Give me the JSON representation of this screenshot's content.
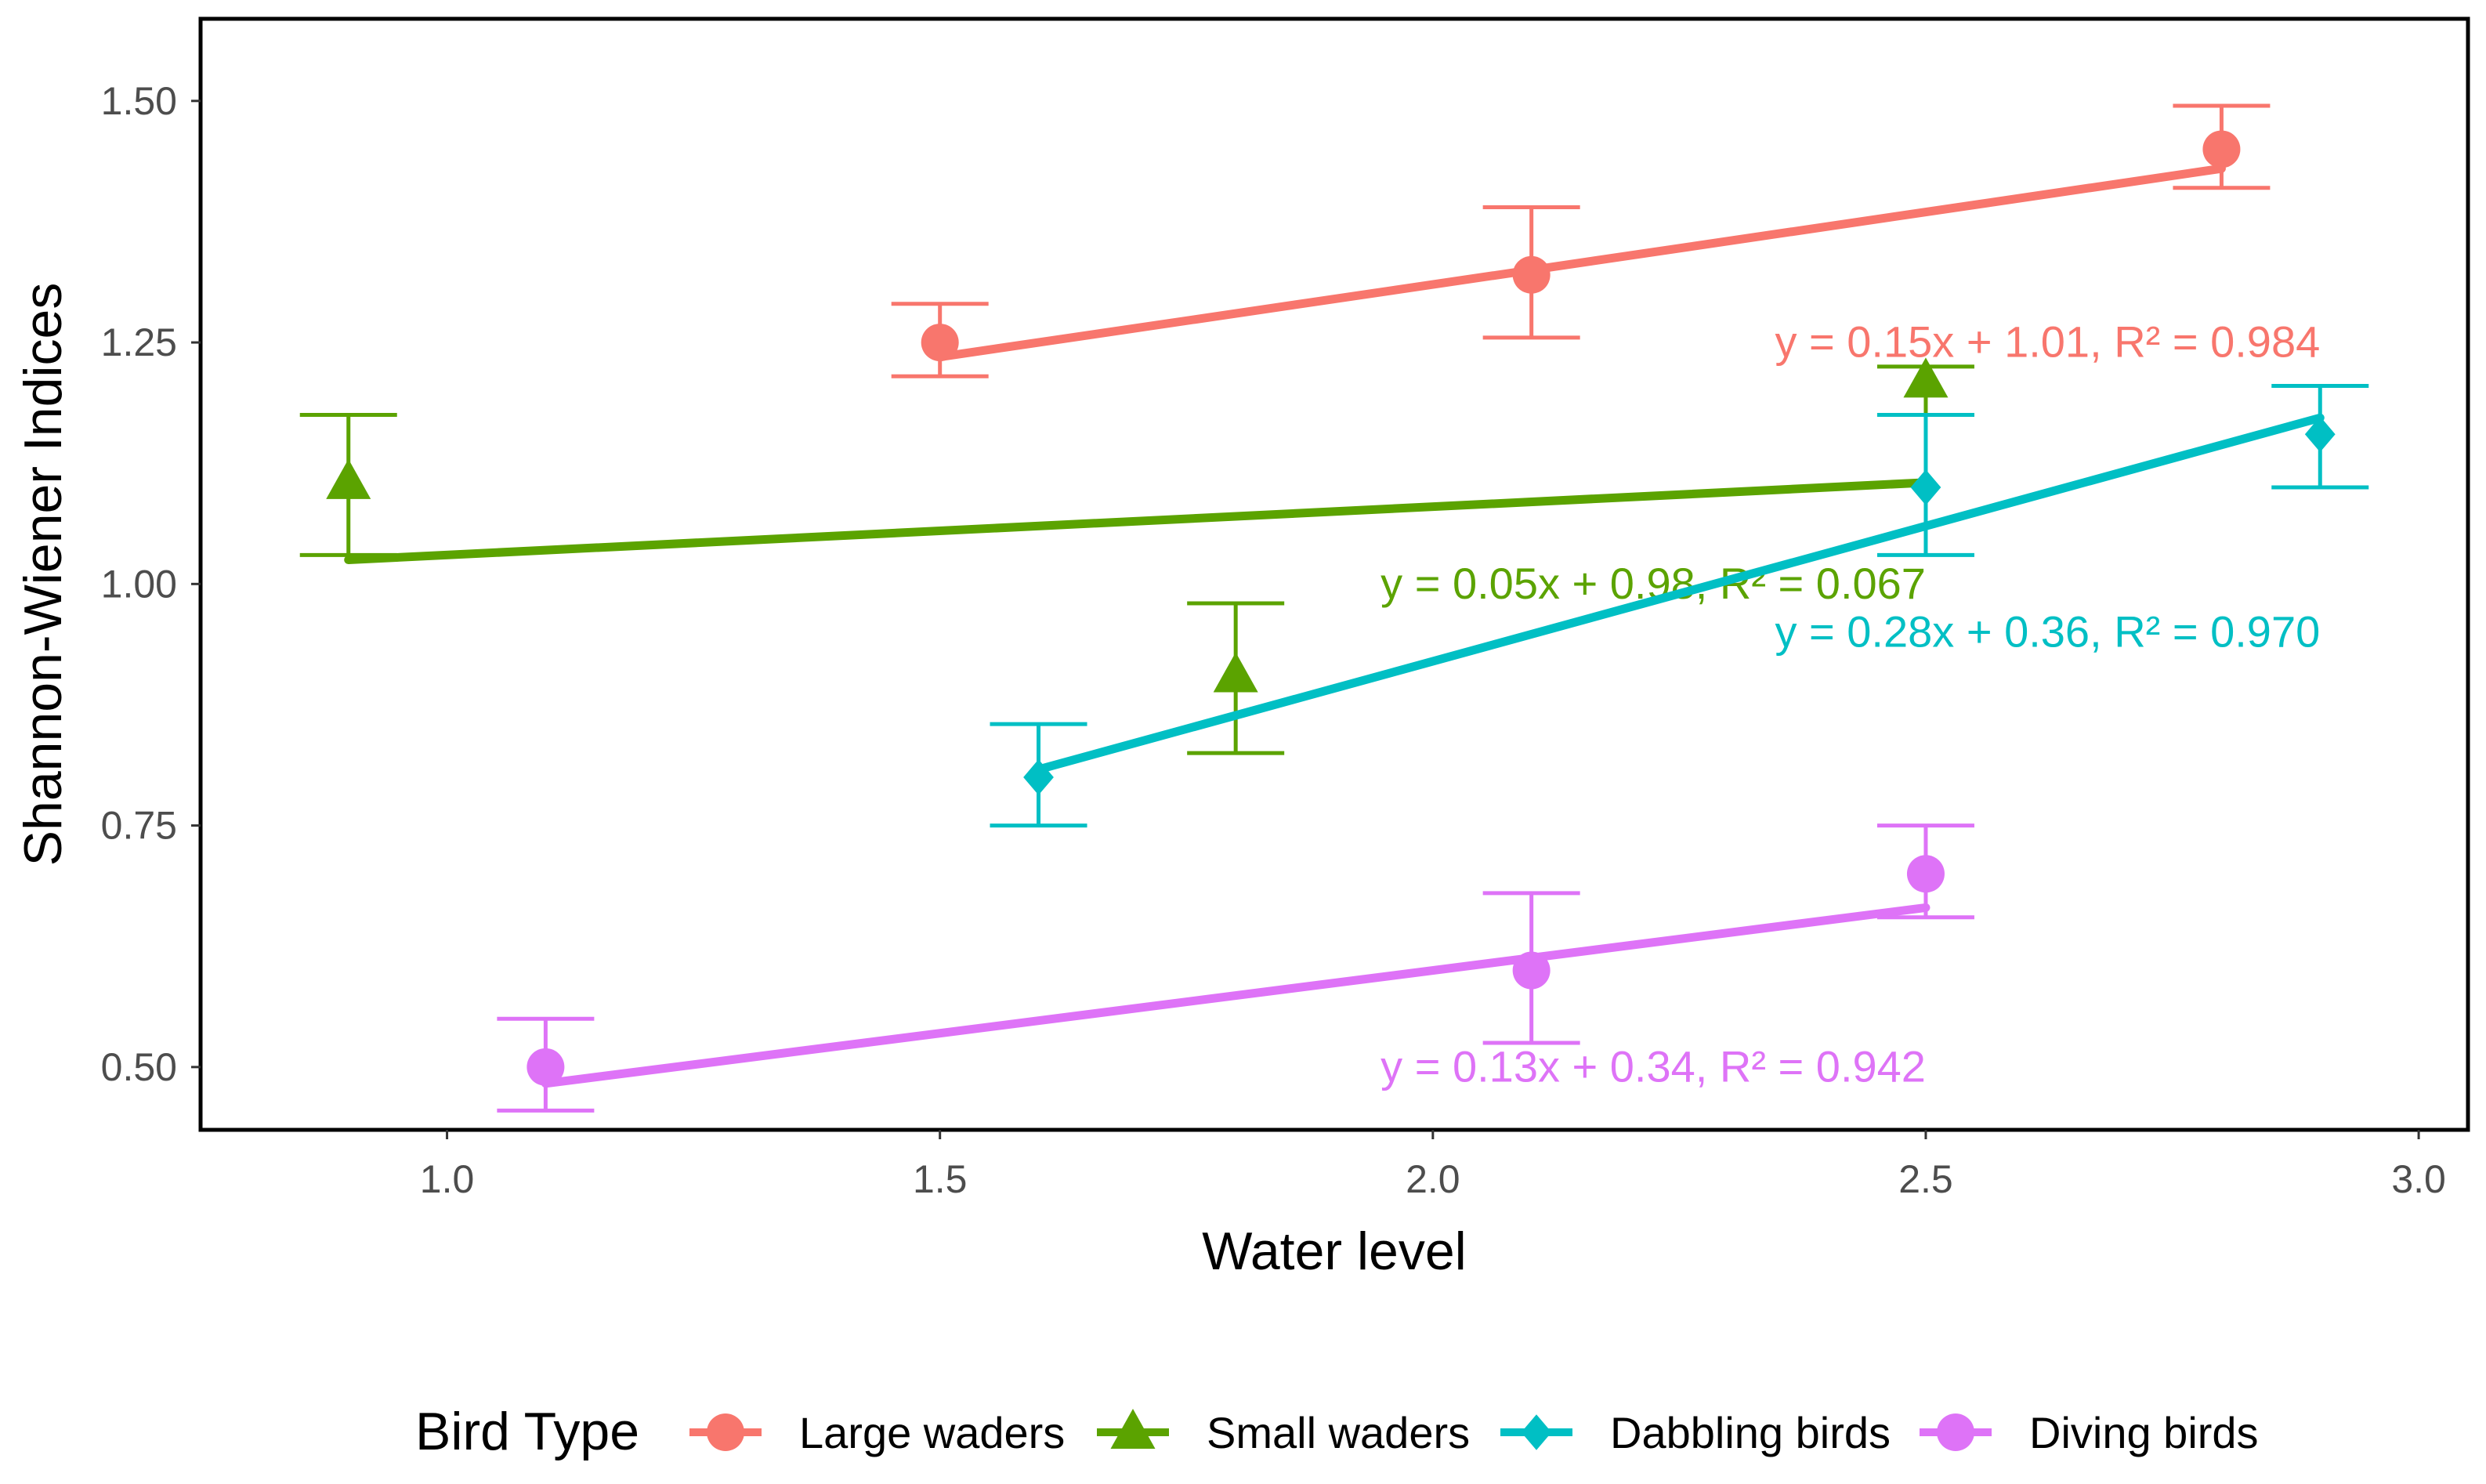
{
  "colors": {
    "large_waders": "#F8766D",
    "small_waders": "#5BA300",
    "dabbling_birds": "#00BFC4",
    "diving_birds": "#DE73F7",
    "axis": "#000000",
    "tick_text": "#4d4d4d"
  },
  "chart_data": {
    "type": "scatter",
    "xlabel": "Water level",
    "ylabel": "Shannon-Wiener Indices",
    "xlim": [
      0.75,
      3.05
    ],
    "ylim": [
      0.435,
      1.585
    ],
    "xticks": [
      1.0,
      1.5,
      2.0,
      2.5,
      3.0
    ],
    "xtick_labels": [
      "1.0",
      "1.5",
      "2.0",
      "2.5",
      "3.0"
    ],
    "yticks": [
      0.5,
      0.75,
      1.0,
      1.25,
      1.5
    ],
    "ytick_labels": [
      "0.50",
      "0.75",
      "1.00",
      "1.25",
      "1.50"
    ],
    "grid": false,
    "legend": {
      "title": "Bird Type",
      "position": "bottom",
      "entries": [
        "Large waders",
        "Small waders",
        "Dabbling birds",
        "Diving birds"
      ]
    },
    "series": [
      {
        "name": "Large waders",
        "marker": "circle",
        "color_key": "large_waders",
        "x": [
          1.5,
          2.1,
          2.8
        ],
        "y": [
          1.25,
          1.32,
          1.45
        ],
        "err_low": [
          1.215,
          1.255,
          1.41
        ],
        "err_high": [
          1.29,
          1.39,
          1.495
        ],
        "fit": {
          "x0": 1.5,
          "x1": 2.8,
          "slope": 0.15,
          "intercept": 1.01
        },
        "equation": "y = 0.15x + 1.01, R² = 0.984",
        "equation_pos": {
          "x": 2.9,
          "y": 1.235,
          "anchor": "end"
        }
      },
      {
        "name": "Small waders",
        "marker": "triangle",
        "color_key": "small_waders",
        "x": [
          0.9,
          1.8,
          2.5
        ],
        "y": [
          1.105,
          0.905,
          1.21
        ],
        "err_low": [
          1.03,
          0.825,
          1.175
        ],
        "err_high": [
          1.175,
          0.98,
          1.225
        ],
        "fit": {
          "x0": 0.9,
          "x1": 2.5,
          "slope": 0.05,
          "intercept": 0.98
        },
        "equation": "y = 0.05x + 0.98, R² = 0.067",
        "equation_pos": {
          "x": 2.5,
          "y": 0.985,
          "anchor": "end"
        }
      },
      {
        "name": "Dabbling birds",
        "marker": "diamond",
        "color_key": "dabbling_birds",
        "x": [
          1.6,
          2.5,
          2.9
        ],
        "y": [
          0.8,
          1.1,
          1.155
        ],
        "err_low": [
          0.75,
          1.03,
          1.1
        ],
        "err_high": [
          0.855,
          1.175,
          1.205
        ],
        "fit": {
          "x0": 1.6,
          "x1": 2.9,
          "slope": 0.28,
          "intercept": 0.36
        },
        "equation": "y = 0.28x + 0.36, R² = 0.970",
        "equation_pos": {
          "x": 2.9,
          "y": 0.935,
          "anchor": "end"
        }
      },
      {
        "name": "Diving birds",
        "marker": "circle",
        "color_key": "diving_birds",
        "x": [
          1.1,
          2.1,
          2.5
        ],
        "y": [
          0.5,
          0.6,
          0.7
        ],
        "err_low": [
          0.455,
          0.525,
          0.655
        ],
        "err_high": [
          0.55,
          0.68,
          0.75
        ],
        "fit": {
          "x0": 1.1,
          "x1": 2.5,
          "slope": 0.13,
          "intercept": 0.34
        },
        "equation": "y = 0.13x + 0.34, R² = 0.942",
        "equation_pos": {
          "x": 2.5,
          "y": 0.485,
          "anchor": "end"
        }
      }
    ]
  }
}
